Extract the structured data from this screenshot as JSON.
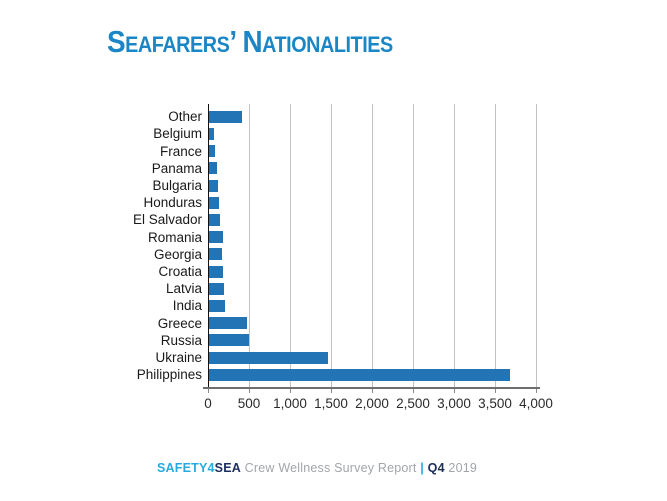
{
  "title": {
    "text": "Seafarers’ Nationalities",
    "color": "#1a86c6"
  },
  "chart_data": {
    "type": "bar",
    "orientation": "horizontal",
    "title": "Seafarers’ Nationalities",
    "xlabel": "",
    "ylabel": "",
    "categories": [
      "Other",
      "Belgium",
      "France",
      "Panama",
      "Bulgaria",
      "Honduras",
      "El Salvador",
      "Romania",
      "Georgia",
      "Croatia",
      "Latvia",
      "India",
      "Greece",
      "Russia",
      "Ukraine",
      "Philippines"
    ],
    "values": [
      400,
      60,
      70,
      100,
      110,
      120,
      130,
      165,
      160,
      165,
      180,
      195,
      465,
      490,
      1450,
      3670
    ],
    "xlim": [
      0,
      4000
    ],
    "x_ticks": [
      0,
      500,
      1000,
      1500,
      2000,
      2500,
      3000,
      3500,
      4000
    ],
    "x_tick_labels": [
      "0",
      "500",
      "1,000",
      "1,500",
      "2,000",
      "2,500",
      "3,000",
      "3,500",
      "4,000"
    ],
    "bar_color": "#2274b5",
    "grid": "vertical",
    "gridline_color": "#c2c2c2",
    "legend": "none"
  },
  "footer": {
    "brand_primary": "SAFETY4",
    "brand_secondary": "SEA",
    "report_text": "Crew Wellness Survey Report",
    "separator": "|",
    "quarter": "Q4",
    "year": "2019",
    "brand_primary_color": "#29a9e0",
    "brand_secondary_color": "#1b2d5b",
    "muted_text_color": "#a2a6aa"
  }
}
